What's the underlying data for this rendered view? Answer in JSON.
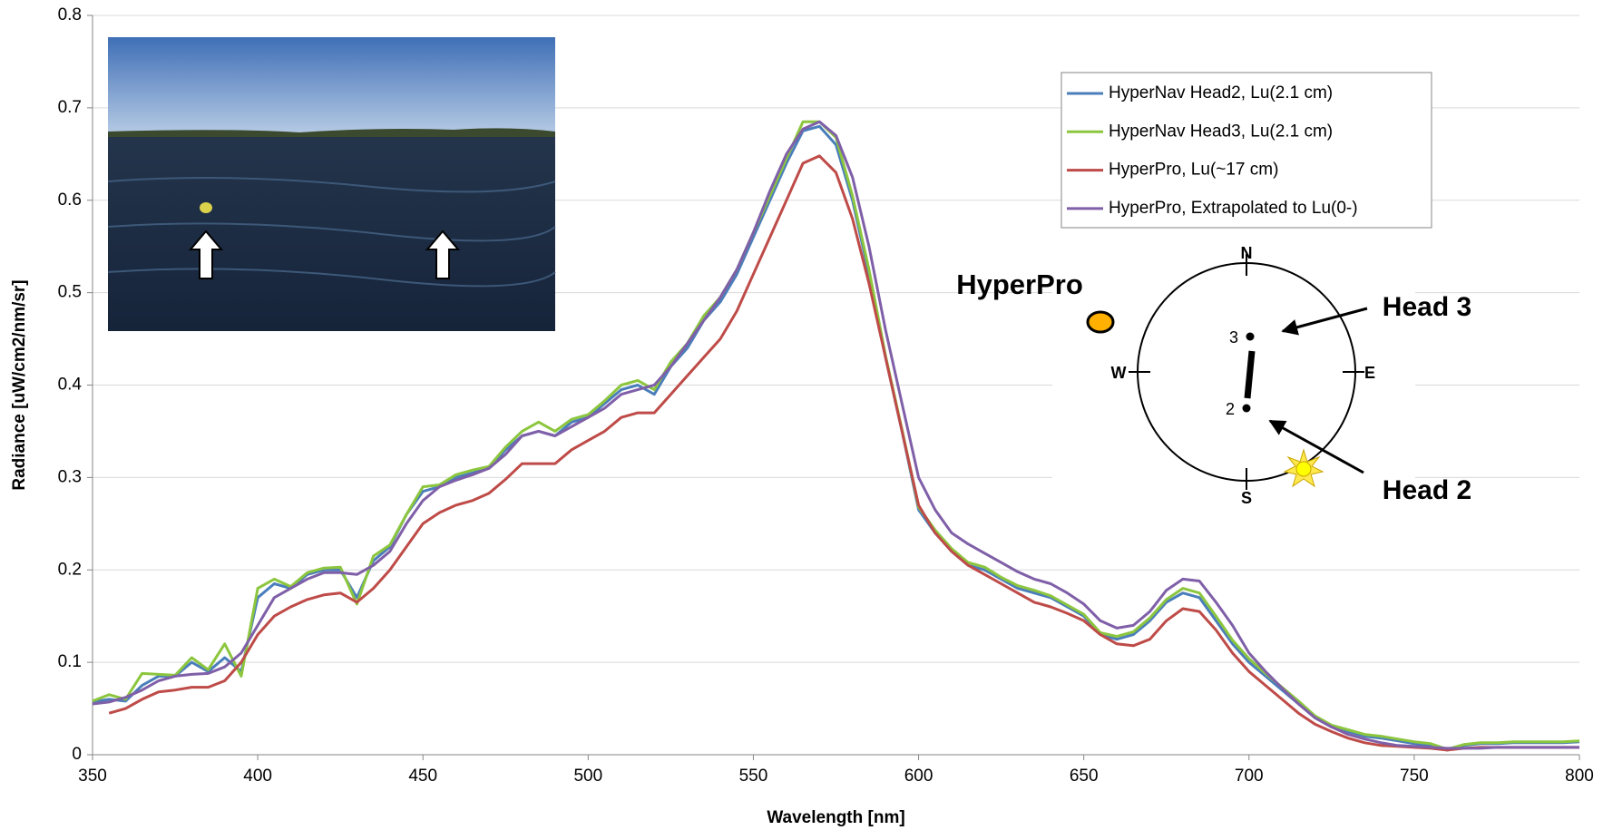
{
  "chart_data": {
    "type": "line",
    "xlabel": "Wavelength [nm]",
    "ylabel": "Radiance [uW/cm2/nm/sr]",
    "xlim": [
      350,
      800
    ],
    "ylim": [
      0,
      0.8
    ],
    "xticks": [
      350,
      400,
      450,
      500,
      550,
      600,
      650,
      700,
      750,
      800
    ],
    "yticks": [
      0,
      0.1,
      0.2,
      0.3,
      0.4,
      0.5,
      0.6,
      0.7,
      0.8
    ],
    "grid": true,
    "legend": "upper right",
    "x": [
      350,
      355,
      360,
      365,
      370,
      375,
      380,
      385,
      390,
      395,
      400,
      405,
      410,
      415,
      420,
      425,
      430,
      435,
      440,
      445,
      450,
      455,
      460,
      465,
      470,
      475,
      480,
      485,
      490,
      495,
      500,
      505,
      510,
      515,
      520,
      525,
      530,
      535,
      540,
      545,
      550,
      555,
      560,
      565,
      570,
      575,
      580,
      585,
      590,
      595,
      600,
      605,
      610,
      615,
      620,
      625,
      630,
      635,
      640,
      645,
      650,
      655,
      660,
      665,
      670,
      675,
      680,
      685,
      690,
      695,
      700,
      705,
      710,
      715,
      720,
      725,
      730,
      735,
      740,
      745,
      750,
      755,
      760,
      765,
      770,
      775,
      780,
      785,
      790,
      795,
      800
    ],
    "series": [
      {
        "name": "HyperNav Head2, Lu(2.1 cm)",
        "color": "#4a7ebb",
        "values": [
          0.057,
          0.06,
          0.058,
          0.075,
          0.085,
          0.085,
          0.1,
          0.09,
          0.105,
          0.09,
          0.17,
          0.185,
          0.18,
          0.195,
          0.2,
          0.2,
          0.17,
          0.21,
          0.225,
          0.26,
          0.285,
          0.29,
          0.3,
          0.305,
          0.31,
          0.33,
          0.345,
          0.35,
          0.345,
          0.36,
          0.365,
          0.38,
          0.395,
          0.4,
          0.39,
          0.42,
          0.44,
          0.47,
          0.49,
          0.52,
          0.56,
          0.6,
          0.64,
          0.675,
          0.68,
          0.66,
          0.6,
          0.52,
          0.43,
          0.35,
          0.265,
          0.24,
          0.22,
          0.205,
          0.2,
          0.19,
          0.18,
          0.175,
          0.17,
          0.16,
          0.15,
          0.13,
          0.125,
          0.13,
          0.145,
          0.165,
          0.175,
          0.17,
          0.145,
          0.12,
          0.1,
          0.085,
          0.07,
          0.055,
          0.04,
          0.03,
          0.025,
          0.02,
          0.018,
          0.015,
          0.012,
          0.01,
          0.005,
          0.01,
          0.012,
          0.012,
          0.013,
          0.013,
          0.013,
          0.013,
          0.014
        ]
      },
      {
        "name": "HyperNav Head3, Lu(2.1 cm)",
        "color": "#8cc63e",
        "values": [
          0.058,
          0.065,
          0.06,
          0.088,
          0.087,
          0.086,
          0.105,
          0.092,
          0.12,
          0.085,
          0.18,
          0.19,
          0.182,
          0.197,
          0.202,
          0.203,
          0.163,
          0.215,
          0.227,
          0.26,
          0.29,
          0.292,
          0.303,
          0.308,
          0.312,
          0.333,
          0.35,
          0.36,
          0.35,
          0.363,
          0.368,
          0.383,
          0.4,
          0.405,
          0.395,
          0.425,
          0.445,
          0.475,
          0.495,
          0.525,
          0.565,
          0.605,
          0.645,
          0.685,
          0.685,
          0.668,
          0.605,
          0.525,
          0.432,
          0.352,
          0.268,
          0.243,
          0.223,
          0.208,
          0.203,
          0.192,
          0.183,
          0.178,
          0.172,
          0.162,
          0.152,
          0.132,
          0.128,
          0.133,
          0.148,
          0.168,
          0.18,
          0.175,
          0.15,
          0.124,
          0.104,
          0.088,
          0.073,
          0.058,
          0.042,
          0.032,
          0.027,
          0.022,
          0.02,
          0.017,
          0.014,
          0.012,
          0.006,
          0.011,
          0.013,
          0.013,
          0.014,
          0.014,
          0.014,
          0.014,
          0.015
        ]
      },
      {
        "name": "HyperPro, Lu(~17 cm)",
        "color": "#be4b48",
        "values": [
          null,
          0.045,
          0.05,
          0.06,
          0.068,
          0.07,
          0.073,
          0.073,
          0.08,
          0.1,
          0.13,
          0.15,
          0.16,
          0.168,
          0.173,
          0.175,
          0.165,
          0.18,
          0.2,
          0.225,
          0.25,
          0.262,
          0.27,
          0.275,
          0.283,
          0.298,
          0.315,
          0.315,
          0.315,
          0.33,
          0.34,
          0.35,
          0.365,
          0.37,
          0.37,
          0.39,
          0.41,
          0.43,
          0.45,
          0.48,
          0.52,
          0.56,
          0.6,
          0.64,
          0.648,
          0.63,
          0.58,
          0.51,
          0.43,
          0.35,
          0.27,
          0.24,
          0.22,
          0.205,
          0.195,
          0.185,
          0.175,
          0.165,
          0.16,
          0.153,
          0.145,
          0.13,
          0.12,
          0.118,
          0.125,
          0.145,
          0.158,
          0.155,
          0.135,
          0.11,
          0.09,
          0.075,
          0.06,
          0.045,
          0.033,
          0.025,
          0.018,
          0.013,
          0.01,
          0.009,
          0.008,
          0.007,
          0.005,
          0.007,
          0.008,
          0.008,
          0.008,
          0.008,
          0.008,
          0.008,
          0.008
        ]
      },
      {
        "name": "HyperPro, Extrapolated to Lu(0-)",
        "color": "#7f5fa8",
        "values": [
          0.055,
          0.057,
          0.062,
          0.07,
          0.08,
          0.085,
          0.087,
          0.088,
          0.095,
          0.11,
          0.14,
          0.17,
          0.18,
          0.19,
          0.197,
          0.197,
          0.195,
          0.205,
          0.22,
          0.25,
          0.275,
          0.29,
          0.297,
          0.303,
          0.31,
          0.325,
          0.345,
          0.35,
          0.345,
          0.355,
          0.365,
          0.375,
          0.39,
          0.395,
          0.4,
          0.42,
          0.445,
          0.47,
          0.495,
          0.525,
          0.565,
          0.61,
          0.65,
          0.677,
          0.685,
          0.67,
          0.625,
          0.55,
          0.46,
          0.38,
          0.3,
          0.265,
          0.24,
          0.228,
          0.218,
          0.208,
          0.198,
          0.19,
          0.185,
          0.175,
          0.163,
          0.145,
          0.137,
          0.14,
          0.155,
          0.178,
          0.19,
          0.188,
          0.165,
          0.14,
          0.11,
          0.09,
          0.072,
          0.055,
          0.04,
          0.03,
          0.022,
          0.017,
          0.013,
          0.01,
          0.009,
          0.008,
          0.007,
          0.007,
          0.007,
          0.008,
          0.008,
          0.008,
          0.008,
          0.008,
          0.008
        ]
      }
    ],
    "annotations": [
      "HyperPro",
      "Head 3",
      "Head 2"
    ],
    "compass": [
      "N",
      "E",
      "S",
      "W"
    ],
    "sensor_labels": [
      "3",
      "2"
    ]
  }
}
